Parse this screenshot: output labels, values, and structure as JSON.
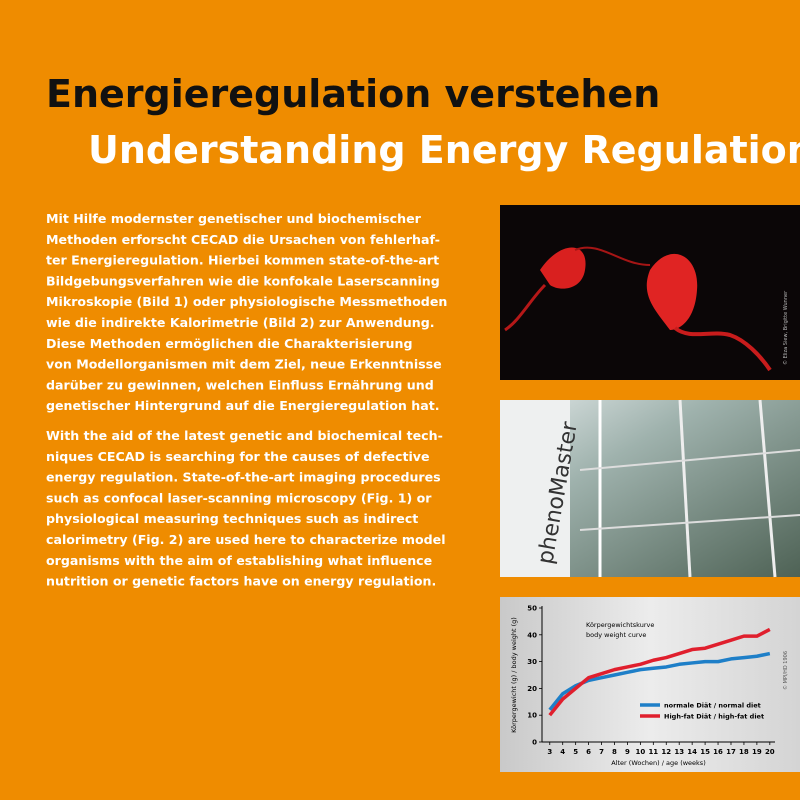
{
  "header": {
    "title": "Energieregulation verstehen",
    "subtitle": "Understanding Energy Regulation"
  },
  "body": {
    "german": [
      "Mit Hilfe modernster genetischer und biochemischer",
      "Methoden erforscht CECAD die Ursachen von fehlerhaf-",
      "ter Energieregulation. Hierbei kommen state-of-the-art",
      "Bildgebungsverfahren wie die konfokale Laserscanning",
      "Mikroskopie (Bild 1) oder physiologische Messmethoden",
      "wie die indirekte Kalorimetrie (Bild 2) zur Anwendung.",
      "Diese Methoden ermöglichen die Charakterisierung",
      "von Modellorganismen mit dem Ziel, neue Erkenntnisse",
      "darüber zu gewinnen, welchen Einfluss Ernährung und",
      "genetischer Hintergrund auf die Energieregulation hat."
    ],
    "english": [
      "With the aid of the latest genetic and biochemical tech-",
      "niques CECAD is searching for the causes of defective",
      "energy regulation. State-of-the-art imaging procedures",
      "such as confocal laser-scanning microscopy (Fig. 1) or",
      "physiological measuring techniques such as indirect",
      "calorimetry (Fig. 2) are used here to characterize model",
      "organisms with the aim of establishing what influence",
      "nutrition or genetic factors have on energy regulation."
    ]
  },
  "figures": {
    "microscopy_credit": "© Eliza Siew, Brigitte Wunner",
    "device_label": "phenoMaster",
    "chart_credit": "© MPI/HD 1906"
  },
  "chart_data": {
    "type": "line",
    "title": "Körpergewichtskurve",
    "subtitle": "body weight curve",
    "x_label": "Alter (Wochen) / age (weeks)",
    "y_label": "Körpergewicht (g) / body weight (g)",
    "x": [
      3,
      4,
      5,
      6,
      7,
      8,
      9,
      10,
      11,
      12,
      13,
      14,
      15,
      16,
      17,
      18,
      19,
      20
    ],
    "series": [
      {
        "name": "normale Diät / normal diet",
        "color": "#1e7fc8",
        "values": [
          12,
          18,
          21,
          23,
          24,
          25,
          26,
          27,
          27.5,
          28,
          29,
          29.5,
          30,
          30,
          31,
          31.5,
          32,
          33
        ]
      },
      {
        "name": "High-fat Diät / high-fat diet",
        "color": "#e01f2d",
        "values": [
          10,
          16,
          20,
          24,
          25.5,
          27,
          28,
          29,
          30.5,
          31.5,
          33,
          34.5,
          35,
          36.5,
          38,
          39.5,
          39.5,
          42
        ]
      }
    ],
    "xlim": [
      2.4,
      20.4
    ],
    "ylim": [
      0,
      50
    ],
    "xticks": [
      3,
      4,
      5,
      6,
      7,
      8,
      9,
      10,
      11,
      12,
      13,
      14,
      15,
      16,
      17,
      18,
      19,
      20
    ],
    "yticks": [
      0,
      10,
      20,
      30,
      40,
      50
    ]
  }
}
